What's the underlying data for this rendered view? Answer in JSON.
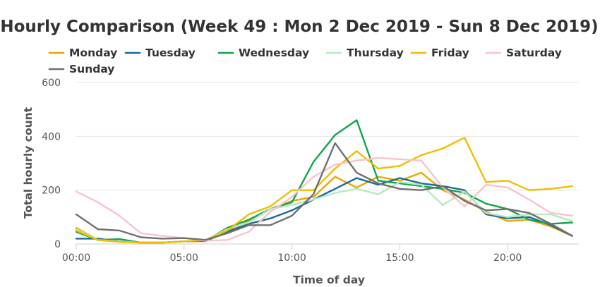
{
  "chart_data": {
    "type": "line",
    "title": "Hourly Comparison (Week 49 : Mon 2 Dec 2019 - Sun 8 Dec 2019)",
    "xlabel": "Time of day",
    "ylabel": "Total hourly count",
    "x": [
      0,
      1,
      2,
      3,
      4,
      5,
      6,
      7,
      8,
      9,
      10,
      11,
      12,
      13,
      14,
      15,
      16,
      17,
      18,
      19,
      20,
      21,
      22,
      23
    ],
    "x_ticks": [
      {
        "value": 0,
        "label": "00:00"
      },
      {
        "value": 5,
        "label": "05:00"
      },
      {
        "value": 10,
        "label": "10:00"
      },
      {
        "value": 15,
        "label": "15:00"
      },
      {
        "value": 20,
        "label": "20:00"
      }
    ],
    "y_ticks": [
      0,
      200,
      400,
      600
    ],
    "xlim": [
      0,
      23.3
    ],
    "ylim": [
      0,
      600
    ],
    "grid": "horizontal",
    "legend_position": "top",
    "series": [
      {
        "name": "Monday",
        "color": "#e8a800",
        "values": [
          60,
          15,
          8,
          5,
          5,
          10,
          10,
          45,
          85,
          130,
          160,
          175,
          250,
          210,
          250,
          235,
          265,
          200,
          165,
          120,
          85,
          90,
          65,
          30
        ]
      },
      {
        "name": "Tuesday",
        "color": "#1a6a9a",
        "values": [
          20,
          20,
          10,
          5,
          5,
          10,
          12,
          45,
          75,
          95,
          125,
          165,
          205,
          245,
          220,
          245,
          225,
          215,
          200,
          110,
          95,
          100,
          70,
          30
        ]
      },
      {
        "name": "Wednesday",
        "color": "#12a34e",
        "values": [
          45,
          15,
          18,
          5,
          5,
          10,
          12,
          60,
          90,
          130,
          155,
          305,
          405,
          460,
          235,
          225,
          215,
          205,
          190,
          150,
          130,
          90,
          75,
          80
        ]
      },
      {
        "name": "Thursday",
        "color": "#b8e8c0",
        "values": [
          55,
          15,
          10,
          5,
          5,
          10,
          15,
          55,
          80,
          130,
          145,
          165,
          190,
          205,
          185,
          230,
          220,
          145,
          195,
          115,
          100,
          110,
          110,
          85
        ]
      },
      {
        "name": "Friday",
        "color": "#f0be00",
        "values": [
          50,
          15,
          8,
          5,
          5,
          10,
          15,
          50,
          110,
          140,
          200,
          200,
          280,
          345,
          280,
          290,
          330,
          355,
          395,
          230,
          235,
          200,
          205,
          215
        ]
      },
      {
        "name": "Saturday",
        "color": "#f7c4cc",
        "values": [
          195,
          155,
          105,
          40,
          30,
          22,
          12,
          15,
          45,
          120,
          175,
          250,
          295,
          310,
          320,
          315,
          310,
          210,
          140,
          220,
          210,
          165,
          115,
          105
        ]
      },
      {
        "name": "Sunday",
        "color": "#707070",
        "values": [
          110,
          55,
          50,
          25,
          20,
          22,
          15,
          40,
          70,
          70,
          105,
          185,
          375,
          265,
          225,
          205,
          200,
          215,
          160,
          125,
          130,
          115,
          75,
          30
        ]
      }
    ]
  }
}
